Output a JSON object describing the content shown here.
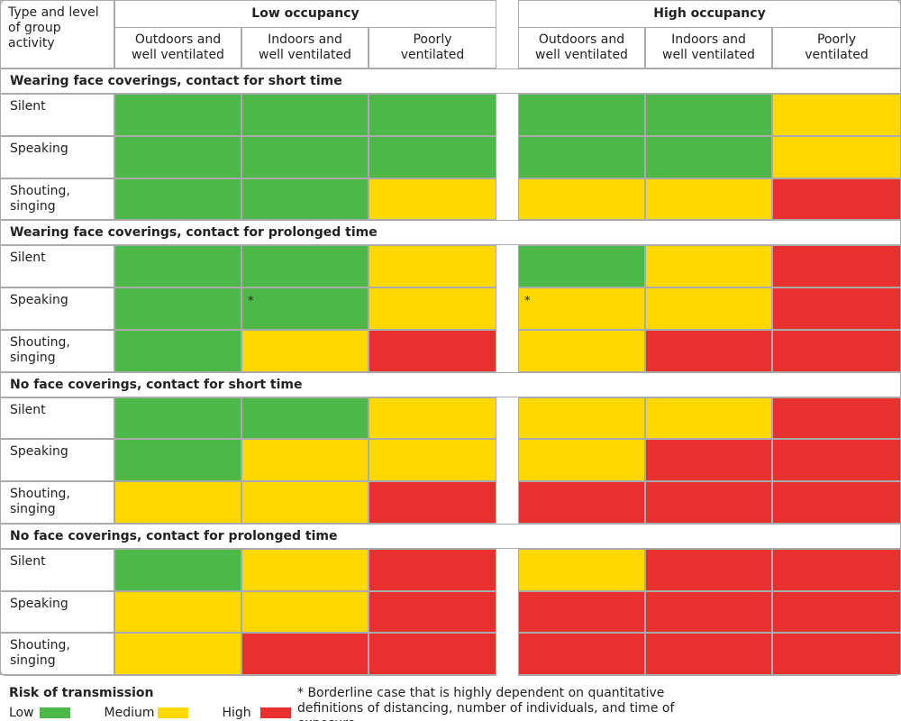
{
  "header": {
    "corner": "Type and level of group activity",
    "groups": [
      "Low occupancy",
      "High occupancy"
    ],
    "columns": [
      "Outdoors and well ventilated",
      "Indoors and well ventilated",
      "Poorly ventilated",
      "Outdoors and well ventilated",
      "Indoors and well ventilated",
      "Poorly ventilated"
    ]
  },
  "sections": [
    {
      "title": "Wearing face coverings, contact for short time",
      "rows": [
        {
          "label": "Silent",
          "cells": [
            "Low",
            "Low",
            "Low",
            "Low",
            "Low",
            "Medium"
          ]
        },
        {
          "label": "Speaking",
          "cells": [
            "Low",
            "Low",
            "Low",
            "Low",
            "Low",
            "Medium"
          ]
        },
        {
          "label": "Shouting, singing",
          "cells": [
            "Low",
            "Low",
            "Medium",
            "Medium",
            "Medium",
            "High"
          ]
        }
      ]
    },
    {
      "title": "Wearing face coverings, contact for prolonged time",
      "rows": [
        {
          "label": "Silent",
          "cells": [
            "Low",
            "Low",
            "Medium",
            "Low",
            "Medium",
            "High"
          ]
        },
        {
          "label": "Speaking",
          "cells": [
            "Low",
            {
              "risk": "Low",
              "note": "*"
            },
            "Medium",
            {
              "risk": "Medium",
              "note": "*"
            },
            "Medium",
            "High"
          ]
        },
        {
          "label": "Shouting, singing",
          "cells": [
            "Low",
            "Medium",
            "High",
            "Medium",
            "High",
            "High"
          ]
        }
      ]
    },
    {
      "title": "No face coverings, contact for short time",
      "rows": [
        {
          "label": "Silent",
          "cells": [
            "Low",
            "Low",
            "Medium",
            "Medium",
            "Medium",
            "High"
          ]
        },
        {
          "label": "Speaking",
          "cells": [
            "Low",
            "Medium",
            "Medium",
            "Medium",
            "High",
            "High"
          ]
        },
        {
          "label": "Shouting, singing",
          "cells": [
            "Medium",
            "Medium",
            "High",
            "High",
            "High",
            "High"
          ]
        }
      ]
    },
    {
      "title": "No face coverings, contact for prolonged time",
      "rows": [
        {
          "label": "Silent",
          "cells": [
            "Low",
            "Medium",
            "High",
            "Medium",
            "High",
            "High"
          ]
        },
        {
          "label": "Speaking",
          "cells": [
            "Medium",
            "Medium",
            "High",
            "High",
            "High",
            "High"
          ]
        },
        {
          "label": "Shouting, singing",
          "cells": [
            "Medium",
            "High",
            "High",
            "High",
            "High",
            "High"
          ]
        }
      ]
    }
  ],
  "legend": {
    "title": "Risk of transmission",
    "items": [
      {
        "label": "Low",
        "color": "#4cb848"
      },
      {
        "label": "Medium",
        "color": "#ffd800"
      },
      {
        "label": "High",
        "color": "#e8312f"
      }
    ]
  },
  "footnote": "* Borderline case that is highly dependent on quantitative definitions of distancing, number of individuals, and time of exposure"
}
